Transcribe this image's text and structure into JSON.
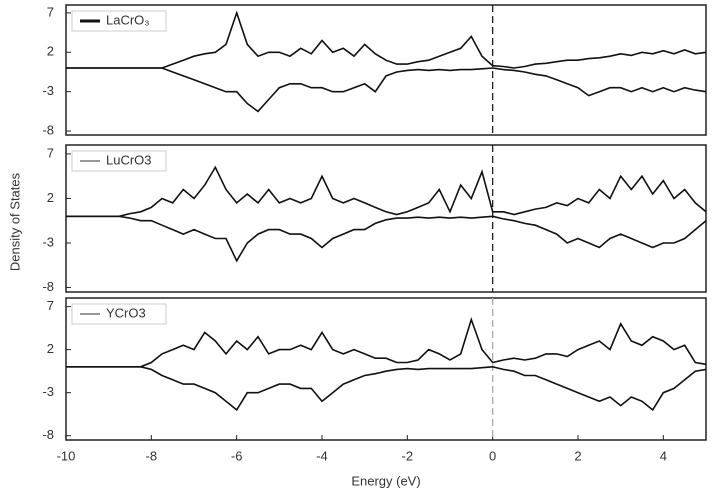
{
  "chart_data": [
    {
      "type": "line",
      "legend": "upper left",
      "xlim": [
        -10,
        5
      ],
      "ylim": [
        -8.5,
        8
      ],
      "yticks": [
        7,
        2,
        -3,
        -8
      ],
      "vline": 0,
      "x": [
        -10,
        -9.75,
        -9.5,
        -9.25,
        -9,
        -8.75,
        -8.5,
        -8.25,
        -8,
        -7.75,
        -7.5,
        -7.25,
        -7,
        -6.75,
        -6.5,
        -6.25,
        -6,
        -5.75,
        -5.5,
        -5.25,
        -5,
        -4.75,
        -4.5,
        -4.25,
        -4,
        -3.75,
        -3.5,
        -3.25,
        -3,
        -2.75,
        -2.5,
        -2.25,
        -2,
        -1.75,
        -1.5,
        -1.25,
        -1,
        -0.75,
        -0.5,
        -0.25,
        0,
        0.25,
        0.5,
        0.75,
        1,
        1.25,
        1.5,
        1.75,
        2,
        2.25,
        2.5,
        2.75,
        3,
        3.25,
        3.5,
        3.75,
        4,
        4.25,
        4.5,
        4.75,
        5
      ],
      "series": [
        {
          "name": "LaCrO₃",
          "color": "#111111",
          "values": [
            0,
            0,
            0,
            0,
            0,
            0,
            0,
            0,
            0,
            0,
            0.5,
            1,
            1.5,
            1.8,
            2,
            3,
            7,
            3,
            1.5,
            2,
            2,
            1.5,
            2.5,
            1.8,
            3.5,
            2,
            2.5,
            1.5,
            3,
            1.8,
            1,
            0.5,
            0.5,
            0.8,
            1,
            1.5,
            2,
            2.5,
            4,
            1.5,
            0.3,
            0.2,
            0,
            0.2,
            0.5,
            0.6,
            0.8,
            1,
            1,
            1.2,
            1.3,
            1.5,
            1.8,
            1.6,
            2,
            1.8,
            2.2,
            1.8,
            2.3,
            1.8,
            2
          ]
        },
        {
          "color": "#111111",
          "values": [
            0,
            0,
            0,
            0,
            0,
            0,
            0,
            0,
            0,
            0,
            -0.5,
            -1,
            -1.5,
            -2,
            -2.5,
            -3,
            -3,
            -4.5,
            -5.5,
            -4,
            -2.5,
            -2,
            -2,
            -2.5,
            -2.5,
            -3,
            -3,
            -2.5,
            -2,
            -3,
            -1,
            -0.5,
            -0.3,
            -0.2,
            -0.3,
            -0.2,
            -0.3,
            -0.2,
            -0.2,
            -0.1,
            0,
            -0.2,
            -0.3,
            -0.5,
            -0.8,
            -1,
            -1.5,
            -2,
            -2.5,
            -3.5,
            -3,
            -2.5,
            -2.5,
            -3,
            -2.5,
            -3,
            -2.5,
            -3,
            -2.5,
            -2.8,
            -3
          ]
        }
      ]
    },
    {
      "type": "line",
      "legend": "upper left",
      "xlim": [
        -10,
        5
      ],
      "ylim": [
        -8.5,
        8
      ],
      "yticks": [
        7,
        2,
        -3,
        -8
      ],
      "vline": 0,
      "ylabel": "Density of States",
      "x": [
        -10,
        -9.75,
        -9.5,
        -9.25,
        -9,
        -8.75,
        -8.5,
        -8.25,
        -8,
        -7.75,
        -7.5,
        -7.25,
        -7,
        -6.75,
        -6.5,
        -6.25,
        -6,
        -5.75,
        -5.5,
        -5.25,
        -5,
        -4.75,
        -4.5,
        -4.25,
        -4,
        -3.75,
        -3.5,
        -3.25,
        -3,
        -2.75,
        -2.5,
        -2.25,
        -2,
        -1.75,
        -1.5,
        -1.25,
        -1,
        -0.75,
        -0.5,
        -0.25,
        0,
        0.25,
        0.5,
        0.75,
        1,
        1.25,
        1.5,
        1.75,
        2,
        2.25,
        2.5,
        2.75,
        3,
        3.25,
        3.5,
        3.75,
        4,
        4.25,
        4.5,
        4.75,
        5
      ],
      "series": [
        {
          "name": "LuCrO3",
          "color": "#111111",
          "values": [
            0,
            0,
            0,
            0,
            0,
            0,
            0.3,
            0.5,
            1,
            2,
            1.5,
            3,
            2,
            3.5,
            5.5,
            3,
            1.5,
            2.5,
            1.5,
            3,
            1.5,
            2,
            1.5,
            2,
            4.5,
            2,
            1.5,
            2,
            1.5,
            1,
            0.5,
            0.2,
            0.5,
            1,
            1.5,
            3,
            0.5,
            3.5,
            2,
            5,
            0.5,
            0.5,
            0.2,
            0.5,
            0.8,
            1,
            1.5,
            1.2,
            2,
            1.5,
            3,
            2,
            4.5,
            3,
            4.5,
            2.5,
            4,
            2,
            3,
            1.5,
            0.5
          ]
        },
        {
          "color": "#111111",
          "values": [
            0,
            0,
            0,
            0,
            0,
            0,
            -0.2,
            -0.5,
            -0.5,
            -1,
            -1.5,
            -2,
            -1.5,
            -2,
            -2.5,
            -2.5,
            -5,
            -3,
            -2,
            -1.5,
            -1.5,
            -2,
            -2,
            -2.5,
            -3.5,
            -2.5,
            -2,
            -1.5,
            -1.5,
            -0.8,
            -0.4,
            -0.2,
            -0.2,
            -0.1,
            -0.2,
            -0.1,
            -0.2,
            -0.1,
            -0.2,
            -0.1,
            0,
            -0.3,
            -0.5,
            -0.8,
            -1,
            -1.5,
            -2,
            -3,
            -2.5,
            -3,
            -3.5,
            -2.5,
            -2,
            -2.5,
            -3,
            -3.5,
            -3,
            -3,
            -2.5,
            -1.5,
            -0.5
          ]
        }
      ]
    },
    {
      "type": "line",
      "legend": "upper left",
      "xlim": [
        -10,
        5
      ],
      "ylim": [
        -8.5,
        8
      ],
      "yticks": [
        7,
        2,
        -3,
        -8
      ],
      "vline": 0,
      "xticks": [
        -10,
        -8,
        -6,
        -4,
        -2,
        0,
        2,
        4
      ],
      "xlabel": "Energy (eV)",
      "x": [
        -10,
        -9.75,
        -9.5,
        -9.25,
        -9,
        -8.75,
        -8.5,
        -8.25,
        -8,
        -7.75,
        -7.5,
        -7.25,
        -7,
        -6.75,
        -6.5,
        -6.25,
        -6,
        -5.75,
        -5.5,
        -5.25,
        -5,
        -4.75,
        -4.5,
        -4.25,
        -4,
        -3.75,
        -3.5,
        -3.25,
        -3,
        -2.75,
        -2.5,
        -2.25,
        -2,
        -1.75,
        -1.5,
        -1.25,
        -1,
        -0.75,
        -0.5,
        -0.25,
        0,
        0.25,
        0.5,
        0.75,
        1,
        1.25,
        1.5,
        1.75,
        2,
        2.25,
        2.5,
        2.75,
        3,
        3.25,
        3.5,
        3.75,
        4,
        4.25,
        4.5,
        4.75,
        5
      ],
      "series": [
        {
          "name": "YCrO3",
          "color": "#111111",
          "values": [
            0,
            0,
            0,
            0,
            0,
            0,
            0,
            0,
            0.5,
            1.5,
            2,
            2.5,
            2,
            4,
            3,
            1.5,
            3,
            2,
            3.5,
            1.5,
            2,
            2,
            2.5,
            2,
            4,
            2,
            1.5,
            2,
            1.5,
            1,
            1,
            0.5,
            0.5,
            0.8,
            2,
            1.5,
            0.8,
            1.5,
            5.5,
            2,
            0.5,
            0.8,
            1,
            0.8,
            1,
            1.5,
            1.5,
            1.2,
            2,
            2.5,
            3,
            2,
            5,
            3,
            2.5,
            3.5,
            3,
            2,
            2.5,
            0.5,
            0.3
          ]
        },
        {
          "color": "#111111",
          "values": [
            0,
            0,
            0,
            0,
            0,
            0,
            0,
            0,
            -0.3,
            -1,
            -1.5,
            -2,
            -2,
            -2.5,
            -3,
            -4,
            -5,
            -3,
            -3,
            -2.5,
            -2,
            -2,
            -2.5,
            -2.5,
            -4,
            -3,
            -2,
            -1.5,
            -1,
            -0.8,
            -0.5,
            -0.3,
            -0.2,
            -0.3,
            -0.2,
            -0.2,
            -0.2,
            -0.2,
            -0.2,
            -0.1,
            0,
            -0.3,
            -0.5,
            -1,
            -1,
            -1.5,
            -2,
            -2.5,
            -3,
            -3.5,
            -4,
            -3.5,
            -4.5,
            -3.5,
            -4,
            -5,
            -3,
            -2.5,
            -1.5,
            -0.5,
            -0.3
          ]
        }
      ]
    }
  ]
}
